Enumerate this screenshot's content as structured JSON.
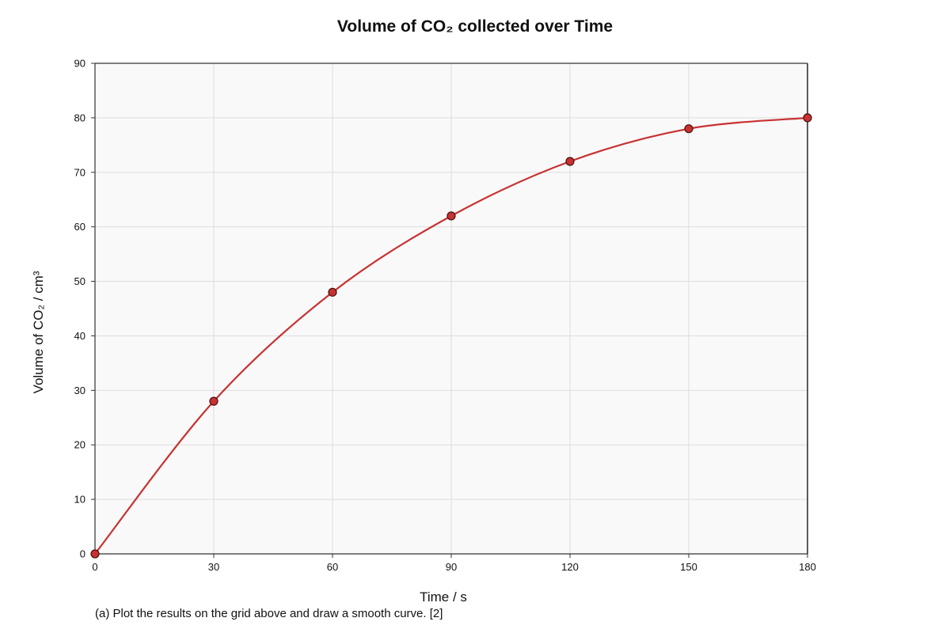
{
  "chart_data": {
    "type": "line",
    "title": "Volume of CO₂ collected over Time",
    "xlabel": "Time / s",
    "ylabel": "Volume of CO₂ / cm³",
    "x": [
      0,
      30,
      60,
      90,
      120,
      150,
      180
    ],
    "series": [
      {
        "values": [
          0,
          28,
          48,
          62,
          72,
          78,
          80
        ],
        "color": "#c83232"
      }
    ],
    "xlim": [
      0,
      180
    ],
    "ylim": [
      0,
      90
    ],
    "xticks": [
      0,
      30,
      60,
      90,
      120,
      150,
      180
    ],
    "yticks": [
      0,
      10,
      20,
      30,
      40,
      50,
      60,
      70,
      80,
      90
    ],
    "grid": true,
    "smooth": true,
    "markers": true
  },
  "question_text": "(a) Plot the results on the grid above and draw a smooth curve. [2]"
}
